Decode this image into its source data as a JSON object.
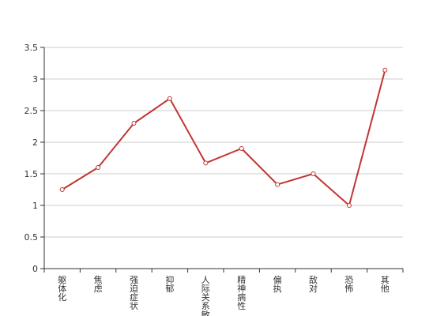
{
  "chart_data": {
    "type": "line",
    "title": "",
    "xlabel": "",
    "ylabel": "",
    "categories": [
      "躯体化",
      "焦虑",
      "强迫症状",
      "抑郁",
      "人际关系敏感",
      "精神病性",
      "偏执",
      "敌对",
      "恐怖",
      "其他"
    ],
    "series": [
      {
        "values": [
          1.25,
          1.6,
          2.3,
          2.69,
          1.67,
          1.9,
          1.33,
          1.5,
          1.0,
          3.14
        ]
      }
    ],
    "ylim": [
      0,
      3.5
    ],
    "yticks": [
      "0",
      "0.5",
      "1",
      "1.5",
      "2",
      "2.5",
      "3",
      "3.5"
    ],
    "grid": true,
    "line_color": "#c23531",
    "grid_color": "#cccccc",
    "axis_color": "#333333"
  }
}
